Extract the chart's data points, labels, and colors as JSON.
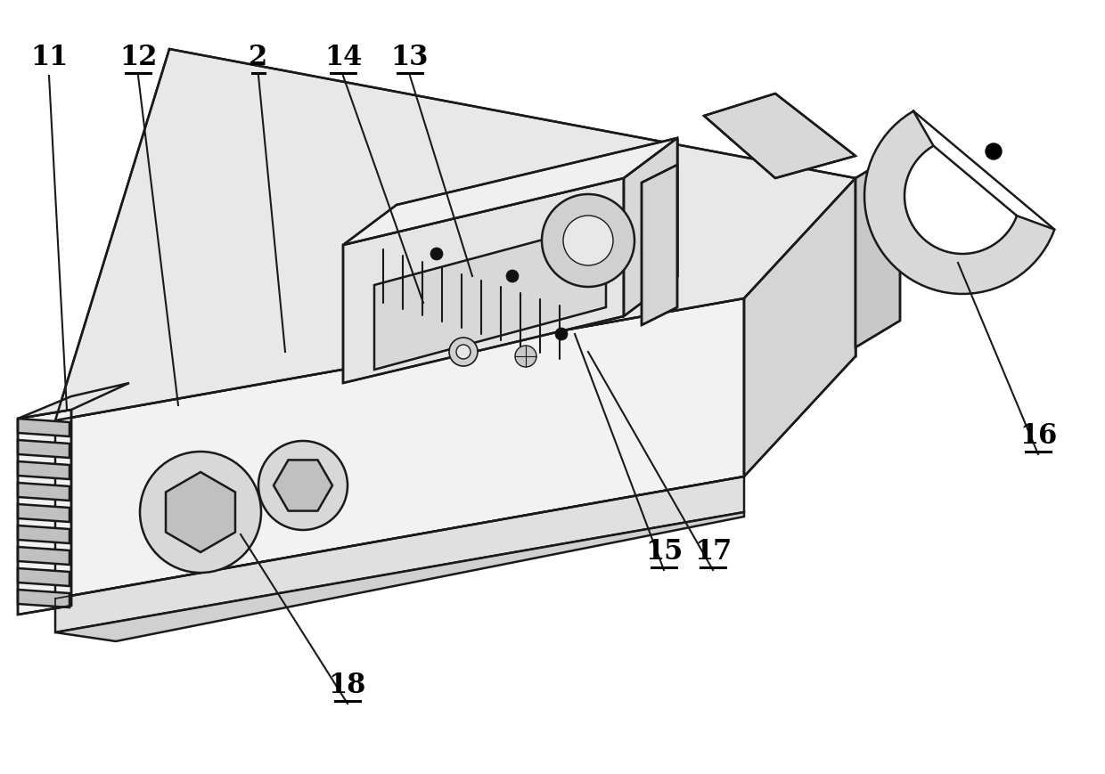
{
  "background_color": "#ffffff",
  "line_color": "#1a1a1a",
  "line_width": 1.8,
  "fill_main": "#f2f2f2",
  "fill_top": "#e8e8e8",
  "fill_side": "#d5d5d5",
  "fill_dark": "#c8c8c8",
  "fill_light": "#f8f8f8",
  "label_fontsize": 22,
  "figsize": [
    12.4,
    8.69
  ],
  "dpi": 100
}
